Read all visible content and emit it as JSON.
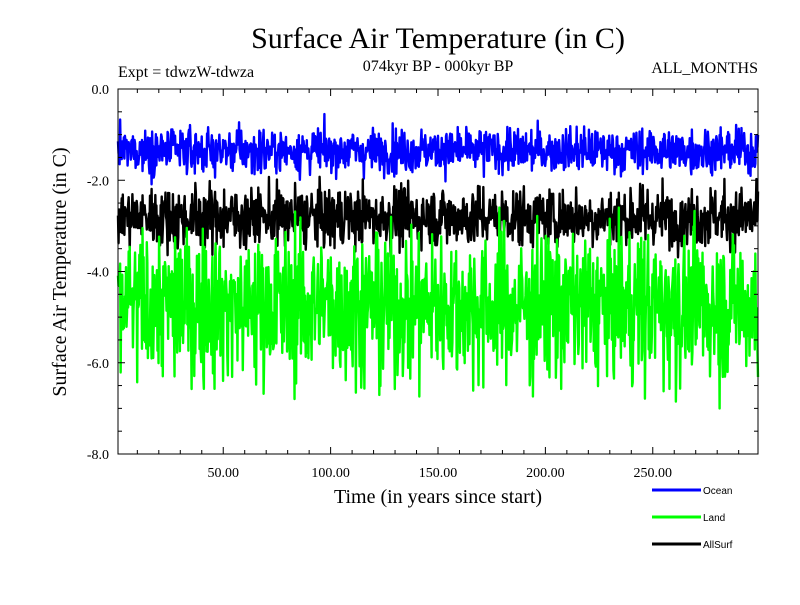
{
  "chart_data": {
    "type": "line",
    "title": "Surface Air Temperature (in C)",
    "subtitle_left": "Expt = tdwzW-tdwza",
    "subtitle_center": "074kyr BP - 000kyr BP",
    "subtitle_right": "ALL_MONTHS",
    "xlabel": "Time (in years since start)",
    "ylabel": "Surface Air Temperature (in C)",
    "xlim": [
      1,
      299
    ],
    "ylim": [
      -8.0,
      0.0
    ],
    "x_ticks": [
      50,
      100,
      150,
      200,
      250
    ],
    "x_tick_labels": [
      "50.00",
      "100.00",
      "150.00",
      "200.00",
      "250.00"
    ],
    "y_ticks": [
      0,
      -2,
      -4,
      -6,
      -8
    ],
    "y_tick_labels": [
      "0.0",
      "-2.0",
      "-4.0",
      "-6.0",
      "-8.0"
    ],
    "grid": false,
    "legend_position": "bottom-right, below plot",
    "series": [
      {
        "name": "Ocean",
        "color": "#0000ff",
        "approx_mean": -1.35,
        "approx_min": -2.1,
        "approx_max": -0.55
      },
      {
        "name": "AllSurf",
        "color": "#000000",
        "approx_mean": -2.8,
        "approx_min": -3.8,
        "approx_max": -1.7
      },
      {
        "name": "Land",
        "color": "#00ff00",
        "approx_mean": -4.75,
        "approx_min": -7.5,
        "approx_max": -2.6
      }
    ],
    "legend": [
      {
        "name": "Ocean",
        "color": "#0000ff"
      },
      {
        "name": "Land",
        "color": "#00ff00"
      },
      {
        "name": "AllSurf",
        "color": "#000000"
      }
    ]
  }
}
